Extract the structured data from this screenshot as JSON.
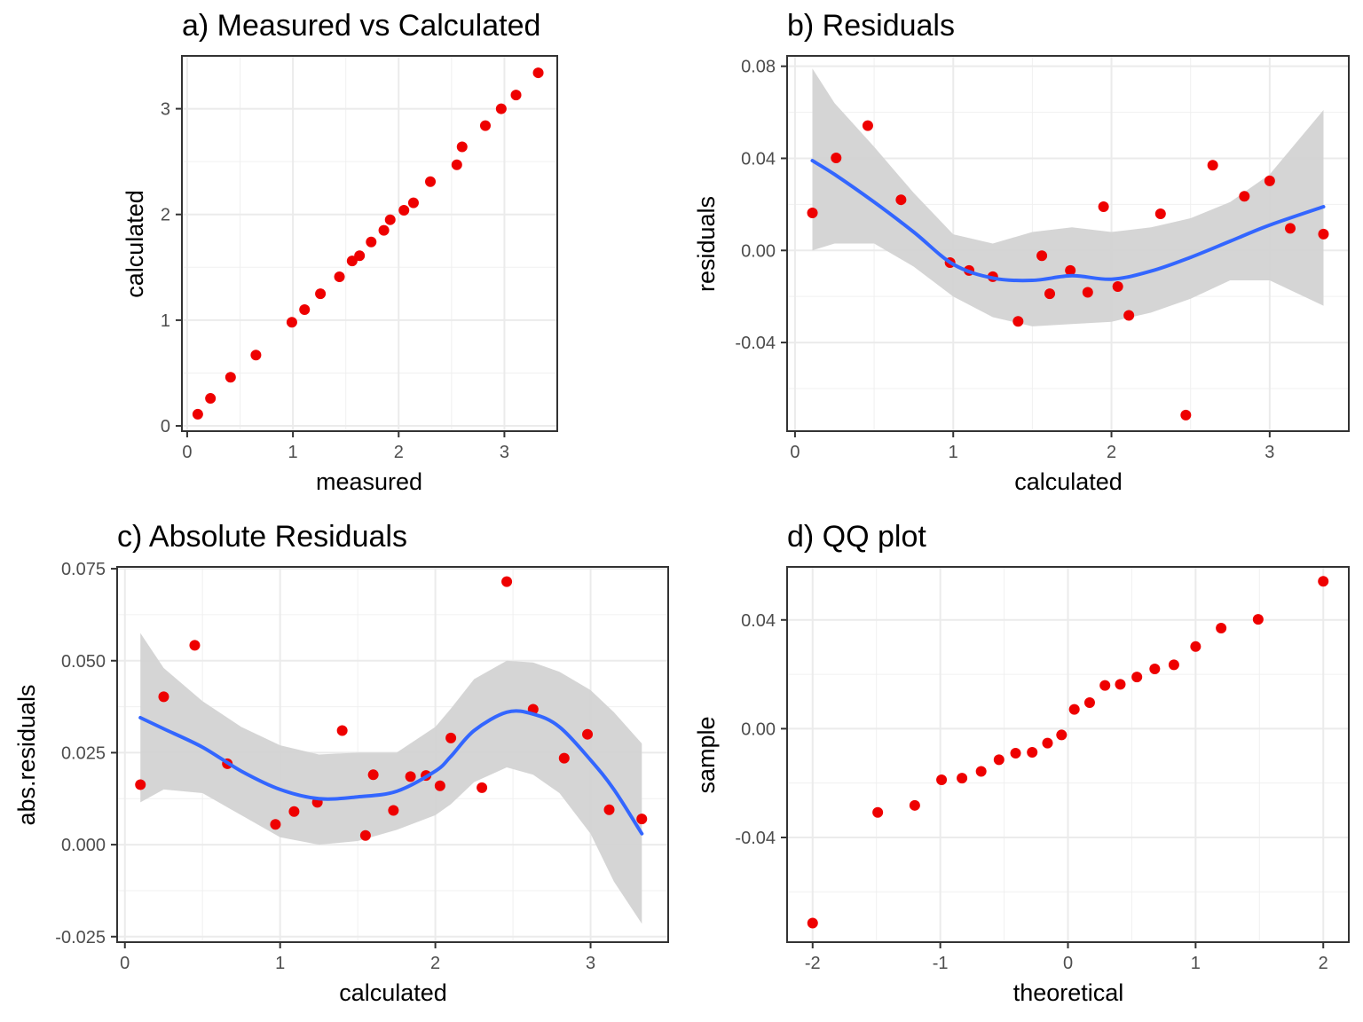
{
  "chart_data": [
    {
      "id": "a",
      "type": "scatter",
      "title": "a) Measured vs Calculated",
      "xlabel": "measured",
      "ylabel": "calculated",
      "xlim": [
        -0.05,
        3.5
      ],
      "ylim": [
        -0.05,
        3.5
      ],
      "xticks": [
        0,
        1,
        2,
        3
      ],
      "xtick_labels": [
        "0",
        "1",
        "2",
        "3"
      ],
      "yticks": [
        0,
        1,
        2,
        3
      ],
      "ytick_labels": [
        "0",
        "1",
        "2",
        "3"
      ],
      "grid": true,
      "point_color": "#ee0000",
      "points": [
        {
          "x": 0.1,
          "y": 0.11
        },
        {
          "x": 0.22,
          "y": 0.26
        },
        {
          "x": 0.41,
          "y": 0.46
        },
        {
          "x": 0.65,
          "y": 0.67
        },
        {
          "x": 0.99,
          "y": 0.98
        },
        {
          "x": 1.11,
          "y": 1.1
        },
        {
          "x": 1.26,
          "y": 1.25
        },
        {
          "x": 1.44,
          "y": 1.41
        },
        {
          "x": 1.56,
          "y": 1.56
        },
        {
          "x": 1.63,
          "y": 1.61
        },
        {
          "x": 1.74,
          "y": 1.74
        },
        {
          "x": 1.86,
          "y": 1.85
        },
        {
          "x": 1.92,
          "y": 1.95
        },
        {
          "x": 2.05,
          "y": 2.04
        },
        {
          "x": 2.14,
          "y": 2.11
        },
        {
          "x": 2.3,
          "y": 2.31
        },
        {
          "x": 2.55,
          "y": 2.47
        },
        {
          "x": 2.6,
          "y": 2.64
        },
        {
          "x": 2.82,
          "y": 2.84
        },
        {
          "x": 2.97,
          "y": 3.0
        },
        {
          "x": 3.11,
          "y": 3.13
        },
        {
          "x": 3.32,
          "y": 3.34
        }
      ]
    },
    {
      "id": "b",
      "type": "scatter",
      "title": "b) Residuals",
      "xlabel": "calculated",
      "ylabel": "residuals",
      "xlim": [
        -0.05,
        3.5
      ],
      "ylim": [
        -0.0785,
        0.0845
      ],
      "xticks": [
        0,
        1,
        2,
        3
      ],
      "xtick_labels": [
        "0",
        "1",
        "2",
        "3"
      ],
      "yticks": [
        -0.04,
        0,
        0.04,
        0.08
      ],
      "ytick_labels": [
        "-0.04",
        "0.00",
        "0.04",
        "0.08"
      ],
      "grid": true,
      "point_color": "#ee0000",
      "smooth_color": "#3366ff",
      "ribbon_color": "#d3d3d3",
      "points": [
        {
          "x": 0.11,
          "y": 0.0163
        },
        {
          "x": 0.26,
          "y": 0.0402
        },
        {
          "x": 0.46,
          "y": 0.0542
        },
        {
          "x": 0.67,
          "y": 0.022
        },
        {
          "x": 0.98,
          "y": -0.0053
        },
        {
          "x": 1.1,
          "y": -0.0087
        },
        {
          "x": 1.25,
          "y": -0.0114
        },
        {
          "x": 1.41,
          "y": -0.0308
        },
        {
          "x": 1.56,
          "y": -0.0023
        },
        {
          "x": 1.61,
          "y": -0.0188
        },
        {
          "x": 1.74,
          "y": -0.0087
        },
        {
          "x": 1.85,
          "y": -0.0182
        },
        {
          "x": 1.95,
          "y": 0.019
        },
        {
          "x": 2.04,
          "y": -0.0157
        },
        {
          "x": 2.11,
          "y": -0.0282
        },
        {
          "x": 2.31,
          "y": 0.0159
        },
        {
          "x": 2.47,
          "y": -0.0715
        },
        {
          "x": 2.64,
          "y": 0.037
        },
        {
          "x": 2.84,
          "y": 0.0235
        },
        {
          "x": 3.0,
          "y": 0.0302
        },
        {
          "x": 3.13,
          "y": 0.0096
        },
        {
          "x": 3.34,
          "y": 0.0071
        }
      ],
      "smooth": {
        "x": [
          0.11,
          0.25,
          0.5,
          0.75,
          1.0,
          1.25,
          1.5,
          1.75,
          2.0,
          2.25,
          2.5,
          2.75,
          3.0,
          3.34
        ],
        "y": [
          0.039,
          0.033,
          0.021,
          0.008,
          -0.006,
          -0.012,
          -0.013,
          -0.011,
          -0.0125,
          -0.009,
          -0.003,
          0.004,
          0.011,
          0.019
        ],
        "ymin": [
          0.0,
          0.003,
          0.003,
          -0.007,
          -0.02,
          -0.029,
          -0.033,
          -0.032,
          -0.031,
          -0.027,
          -0.021,
          -0.013,
          -0.013,
          -0.024
        ],
        "ymax": [
          0.079,
          0.064,
          0.045,
          0.025,
          0.007,
          0.003,
          0.008,
          0.01,
          0.008,
          0.01,
          0.014,
          0.021,
          0.033,
          0.061
        ]
      }
    },
    {
      "id": "c",
      "type": "scatter",
      "title": "c) Absolute Residuals",
      "xlabel": "calculated",
      "ylabel": "abs.residuals",
      "xlim": [
        -0.05,
        3.5
      ],
      "ylim": [
        -0.0265,
        0.0755
      ],
      "xticks": [
        0,
        1,
        2,
        3
      ],
      "xtick_labels": [
        "0",
        "1",
        "2",
        "3"
      ],
      "yticks": [
        -0.025,
        0,
        0.025,
        0.05,
        0.075
      ],
      "ytick_labels": [
        "-0.025",
        "0.000",
        "0.025",
        "0.050",
        "0.075"
      ],
      "grid": true,
      "point_color": "#ee0000",
      "smooth_color": "#3366ff",
      "ribbon_color": "#d3d3d3",
      "points": [
        {
          "x": 0.1,
          "y": 0.0163
        },
        {
          "x": 0.25,
          "y": 0.0402
        },
        {
          "x": 0.45,
          "y": 0.0542
        },
        {
          "x": 0.66,
          "y": 0.022
        },
        {
          "x": 0.97,
          "y": 0.0055
        },
        {
          "x": 1.09,
          "y": 0.009
        },
        {
          "x": 1.24,
          "y": 0.0115
        },
        {
          "x": 1.4,
          "y": 0.031
        },
        {
          "x": 1.55,
          "y": 0.0025
        },
        {
          "x": 1.6,
          "y": 0.019
        },
        {
          "x": 1.73,
          "y": 0.0093
        },
        {
          "x": 1.84,
          "y": 0.0185
        },
        {
          "x": 1.94,
          "y": 0.0188
        },
        {
          "x": 2.03,
          "y": 0.016
        },
        {
          "x": 2.1,
          "y": 0.029
        },
        {
          "x": 2.3,
          "y": 0.0155
        },
        {
          "x": 2.46,
          "y": 0.0715
        },
        {
          "x": 2.63,
          "y": 0.0368
        },
        {
          "x": 2.83,
          "y": 0.0235
        },
        {
          "x": 2.98,
          "y": 0.03
        },
        {
          "x": 3.12,
          "y": 0.0095
        },
        {
          "x": 3.33,
          "y": 0.007
        }
      ],
      "smooth": {
        "x": [
          0.1,
          0.25,
          0.5,
          0.75,
          1.0,
          1.25,
          1.5,
          1.75,
          2.0,
          2.1,
          2.25,
          2.46,
          2.63,
          2.8,
          3.0,
          3.15,
          3.33
        ],
        "y": [
          0.0345,
          0.0315,
          0.0265,
          0.02,
          0.015,
          0.0125,
          0.013,
          0.0145,
          0.02,
          0.024,
          0.031,
          0.036,
          0.0355,
          0.032,
          0.023,
          0.015,
          0.003
        ],
        "ymin": [
          0.0115,
          0.015,
          0.014,
          0.008,
          0.002,
          0.0,
          0.001,
          0.004,
          0.008,
          0.011,
          0.017,
          0.021,
          0.019,
          0.014,
          0.003,
          -0.01,
          -0.0215
        ],
        "ymax": [
          0.0575,
          0.048,
          0.039,
          0.032,
          0.027,
          0.0245,
          0.025,
          0.025,
          0.032,
          0.037,
          0.045,
          0.05,
          0.0495,
          0.047,
          0.042,
          0.036,
          0.0275
        ]
      }
    },
    {
      "id": "d",
      "type": "scatter",
      "title": "d) QQ plot",
      "xlabel": "theoretical",
      "ylabel": "sample",
      "xlim": [
        -2.2,
        2.2
      ],
      "ylim": [
        -0.0785,
        0.0595
      ],
      "xticks": [
        -2,
        -1,
        0,
        1,
        2
      ],
      "xtick_labels": [
        "-2",
        "-1",
        "0",
        "1",
        "2"
      ],
      "yticks": [
        -0.04,
        0,
        0.04
      ],
      "ytick_labels": [
        "-0.04",
        "0.00",
        "0.04"
      ],
      "grid": true,
      "point_color": "#ee0000",
      "points": [
        {
          "x": -2.0,
          "y": -0.0715
        },
        {
          "x": -1.49,
          "y": -0.0308
        },
        {
          "x": -1.2,
          "y": -0.0282
        },
        {
          "x": -0.99,
          "y": -0.0188
        },
        {
          "x": -0.83,
          "y": -0.0182
        },
        {
          "x": -0.68,
          "y": -0.0157
        },
        {
          "x": -0.54,
          "y": -0.0114
        },
        {
          "x": -0.41,
          "y": -0.009
        },
        {
          "x": -0.28,
          "y": -0.0087
        },
        {
          "x": -0.16,
          "y": -0.0053
        },
        {
          "x": -0.05,
          "y": -0.0023
        },
        {
          "x": 0.05,
          "y": 0.0071
        },
        {
          "x": 0.17,
          "y": 0.0096
        },
        {
          "x": 0.29,
          "y": 0.0159
        },
        {
          "x": 0.41,
          "y": 0.0163
        },
        {
          "x": 0.54,
          "y": 0.019
        },
        {
          "x": 0.68,
          "y": 0.022
        },
        {
          "x": 0.83,
          "y": 0.0235
        },
        {
          "x": 1.0,
          "y": 0.0302
        },
        {
          "x": 1.2,
          "y": 0.037
        },
        {
          "x": 1.49,
          "y": 0.0402
        },
        {
          "x": 2.0,
          "y": 0.0542
        }
      ]
    }
  ]
}
